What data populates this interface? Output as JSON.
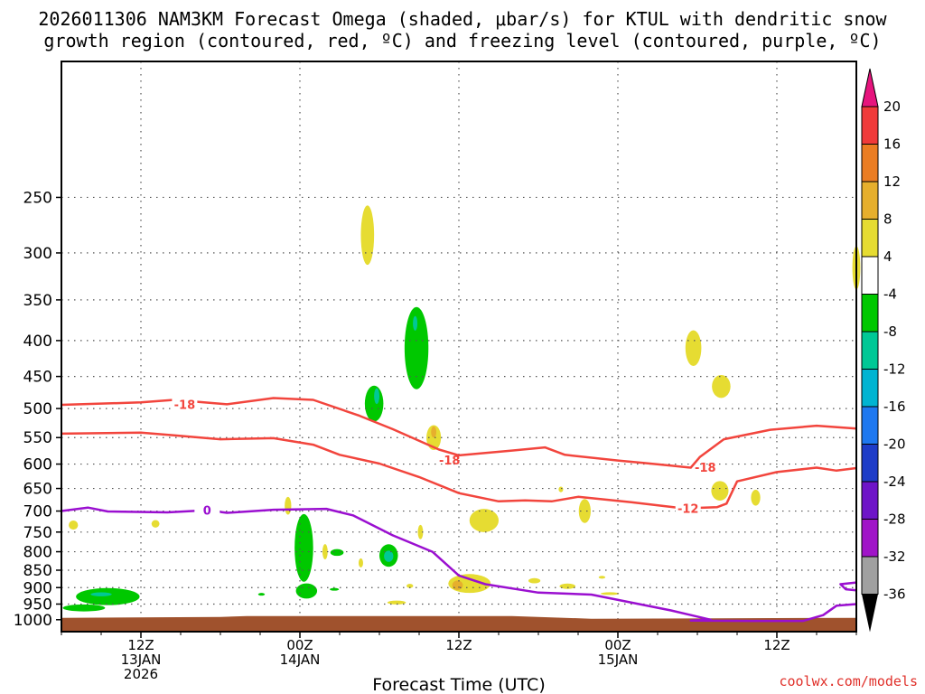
{
  "colors": {
    "dendritic": "#f2453d",
    "freezing": "#9a0fd0",
    "terrain": "#a0522d",
    "rising_weak": "#00c800",
    "rising_mod": "#00c896",
    "rising_strong": "#00b4d2",
    "sinking_weak": "#e6dc32",
    "sinking_mod": "#e6af2d"
  },
  "chart_data": {
    "type": "heatmap",
    "title_line1": "2026011306 NAM3KM Forecast Omega (shaded, μbar/s) for KTUL with dendritic snow",
    "title_line2": "growth region (contoured, red, ºC) and freezing level (contoured, purple, ºC)",
    "xlabel": "Forecast Time (UTC)",
    "x_unit": "forecast hour",
    "xlim": [
      0,
      60
    ],
    "ylim_hPa": [
      1040,
      160
    ],
    "y_ticks": [
      250,
      300,
      350,
      400,
      450,
      500,
      550,
      600,
      650,
      700,
      750,
      800,
      850,
      900,
      950,
      1000
    ],
    "x_ticks": [
      {
        "hour": 6,
        "line1": "12Z",
        "line2": "13JAN",
        "line3": "2026"
      },
      {
        "hour": 18,
        "line1": "00Z",
        "line2": "14JAN",
        "line3": ""
      },
      {
        "hour": 30,
        "line1": "12Z",
        "line2": "",
        "line3": ""
      },
      {
        "hour": 42,
        "line1": "00Z",
        "line2": "15JAN",
        "line3": ""
      },
      {
        "hour": 54,
        "line1": "12Z",
        "line2": "",
        "line3": ""
      }
    ],
    "colorbar": {
      "labels": [
        "20",
        "16",
        "12",
        "8",
        "4",
        "-4",
        "-8",
        "-12",
        "-16",
        "-20",
        "-24",
        "-28",
        "-32",
        "-36"
      ],
      "bins": [
        {
          "range": [
            16,
            20
          ],
          "color": "#f03a3a"
        },
        {
          "range": [
            12,
            16
          ],
          "color": "#eb7d23"
        },
        {
          "range": [
            8,
            12
          ],
          "color": "#e6af2d"
        },
        {
          "range": [
            4,
            8
          ],
          "color": "#e6dc32"
        },
        {
          "range": [
            -4,
            4
          ],
          "color": "#ffffff"
        },
        {
          "range": [
            -8,
            -4
          ],
          "color": "#00c800"
        },
        {
          "range": [
            -12,
            -8
          ],
          "color": "#00c896"
        },
        {
          "range": [
            -16,
            -12
          ],
          "color": "#00b4d2"
        },
        {
          "range": [
            -20,
            -16
          ],
          "color": "#1e78f0"
        },
        {
          "range": [
            -24,
            -20
          ],
          "color": "#1e3cc8"
        },
        {
          "range": [
            -28,
            -24
          ],
          "color": "#6e14c8"
        },
        {
          "range": [
            -32,
            -28
          ],
          "color": "#a014c8"
        },
        {
          "range": [
            -36,
            -32
          ],
          "color": "#a0a0a0"
        }
      ],
      "top_arrow_color": "#e6147d",
      "bottom_arrow_color": "#000000"
    },
    "contours": [
      {
        "name": "dendritic-upper-18",
        "label": "-18",
        "label_at": [
          9.3,
          493
        ],
        "points": [
          [
            0,
            494
          ],
          [
            6,
            490
          ],
          [
            8.5,
            486
          ],
          [
            12.5,
            493
          ],
          [
            16,
            483
          ],
          [
            19,
            486
          ],
          [
            22.5,
            512
          ],
          [
            25,
            535
          ],
          [
            28.5,
            572
          ],
          [
            30,
            583
          ],
          [
            34,
            574
          ],
          [
            36.5,
            568
          ],
          [
            38,
            582
          ],
          [
            42,
            593
          ],
          [
            44,
            598
          ],
          [
            46,
            603
          ],
          [
            47.5,
            607
          ],
          [
            48.2,
            586
          ],
          [
            50,
            553
          ],
          [
            53.5,
            536
          ],
          [
            57,
            529
          ],
          [
            60,
            534
          ]
        ]
      },
      {
        "name": "dendritic-lower-12",
        "label": "-12",
        "label_at": [
          47.3,
          694
        ],
        "points": [
          [
            0,
            543
          ],
          [
            6,
            541
          ],
          [
            8.5,
            546
          ],
          [
            12,
            553
          ],
          [
            16,
            551
          ],
          [
            19,
            563
          ],
          [
            21,
            582
          ],
          [
            24,
            599
          ],
          [
            27,
            626
          ],
          [
            30,
            660
          ],
          [
            33,
            678
          ],
          [
            35,
            676
          ],
          [
            37,
            678
          ],
          [
            39,
            668
          ],
          [
            43,
            680
          ],
          [
            47,
            694
          ],
          [
            49.5,
            691
          ],
          [
            50.2,
            683
          ],
          [
            51,
            635
          ],
          [
            54,
            616
          ],
          [
            57,
            607
          ],
          [
            58.5,
            613
          ],
          [
            60,
            608
          ]
        ]
      },
      {
        "name": "freezing-level-0",
        "label": "0",
        "label_at": [
          11,
          698
        ],
        "points": [
          [
            0,
            700
          ],
          [
            2,
            692
          ],
          [
            3.5,
            701
          ],
          [
            8,
            703
          ],
          [
            11,
            698
          ],
          [
            12.5,
            704
          ],
          [
            16,
            697
          ],
          [
            20,
            695
          ],
          [
            22,
            710
          ],
          [
            25,
            758
          ],
          [
            28,
            800
          ],
          [
            30,
            865
          ],
          [
            32,
            890
          ],
          [
            36,
            915
          ],
          [
            40,
            921
          ],
          [
            46,
            970
          ],
          [
            49,
            1000
          ],
          [
            47.5,
            1003
          ],
          [
            52,
            1004
          ],
          [
            56,
            1004
          ],
          [
            57.5,
            985
          ],
          [
            58.5,
            955
          ],
          [
            60,
            950
          ]
        ]
      },
      {
        "name": "freezing-level-0-right",
        "label": "",
        "label_at": null,
        "points": [
          [
            60,
            885
          ],
          [
            58.8,
            890
          ],
          [
            59.2,
            905
          ],
          [
            60,
            908
          ]
        ]
      }
    ],
    "shaded_regions": [
      {
        "bin": "-8",
        "hour": 3.5,
        "hPa": 927,
        "hw": 2.4,
        "hh": 52
      },
      {
        "bin": "-12",
        "hour": 3.0,
        "hPa": 920,
        "hw": 0.8,
        "hh": 12
      },
      {
        "bin": "-8",
        "hour": 1.7,
        "hPa": 962,
        "hw": 1.6,
        "hh": 22
      },
      {
        "bin": "4",
        "hour": 0.9,
        "hPa": 733,
        "hw": 0.35,
        "hh": 22
      },
      {
        "bin": "4",
        "hour": 7.1,
        "hPa": 730,
        "hw": 0.3,
        "hh": 18
      },
      {
        "bin": "4",
        "hour": 17.1,
        "hPa": 688,
        "hw": 0.25,
        "hh": 40
      },
      {
        "bin": "-8",
        "hour": 18.3,
        "hPa": 790,
        "hw": 0.7,
        "hh": 175
      },
      {
        "bin": "-8",
        "hour": 18.5,
        "hPa": 910,
        "hw": 0.8,
        "hh": 45
      },
      {
        "bin": "4",
        "hour": 19.9,
        "hPa": 800,
        "hw": 0.2,
        "hh": 40
      },
      {
        "bin": "-8",
        "hour": 20.8,
        "hPa": 802,
        "hw": 0.5,
        "hh": 18
      },
      {
        "bin": "-8",
        "hour": 15.1,
        "hPa": 920,
        "hw": 0.25,
        "hh": 8
      },
      {
        "bin": "-8",
        "hour": 20.6,
        "hPa": 905,
        "hw": 0.35,
        "hh": 8
      },
      {
        "bin": "4",
        "hour": 22.6,
        "hPa": 830,
        "hw": 0.15,
        "hh": 25
      },
      {
        "bin": "4",
        "hour": 23.1,
        "hPa": 283,
        "hw": 0.5,
        "hh": 55
      },
      {
        "bin": "-8",
        "hour": 23.6,
        "hPa": 492,
        "hw": 0.7,
        "hh": 58
      },
      {
        "bin": "-12",
        "hour": 23.8,
        "hPa": 480,
        "hw": 0.2,
        "hh": 25
      },
      {
        "bin": "-8",
        "hour": 26.8,
        "hPa": 410,
        "hw": 0.9,
        "hh": 110
      },
      {
        "bin": "-12",
        "hour": 26.7,
        "hPa": 378,
        "hw": 0.12,
        "hh": 18
      },
      {
        "bin": "-8",
        "hour": 24.7,
        "hPa": 810,
        "hw": 0.7,
        "hh": 60
      },
      {
        "bin": "-12",
        "hour": 24.7,
        "hPa": 812,
        "hw": 0.35,
        "hh": 30
      },
      {
        "bin": "4",
        "hour": 28.1,
        "hPa": 550,
        "hw": 0.55,
        "hh": 45
      },
      {
        "bin": "8",
        "hour": 28.1,
        "hPa": 540,
        "hw": 0.2,
        "hh": 20
      },
      {
        "bin": "4",
        "hour": 25.3,
        "hPa": 945,
        "hw": 0.7,
        "hh": 12
      },
      {
        "bin": "4",
        "hour": 26.3,
        "hPa": 895,
        "hw": 0.25,
        "hh": 12
      },
      {
        "bin": "4",
        "hour": 27.1,
        "hPa": 750,
        "hw": 0.2,
        "hh": 35
      },
      {
        "bin": "4",
        "hour": 31.9,
        "hPa": 722,
        "hw": 1.1,
        "hh": 55
      },
      {
        "bin": "4",
        "hour": 30.8,
        "hPa": 888,
        "hw": 1.6,
        "hh": 55
      },
      {
        "bin": "8",
        "hour": 29.9,
        "hPa": 893,
        "hw": 0.4,
        "hh": 28
      },
      {
        "bin": "4",
        "hour": 35.7,
        "hPa": 880,
        "hw": 0.45,
        "hh": 15
      },
      {
        "bin": "4",
        "hour": 38.2,
        "hPa": 896,
        "hw": 0.6,
        "hh": 16
      },
      {
        "bin": "4",
        "hour": 39.5,
        "hPa": 700,
        "hw": 0.45,
        "hh": 55
      },
      {
        "bin": "4",
        "hour": 37.7,
        "hPa": 652,
        "hw": 0.12,
        "hh": 12
      },
      {
        "bin": "4",
        "hour": 40.8,
        "hPa": 870,
        "hw": 0.25,
        "hh": 8
      },
      {
        "bin": "4",
        "hour": 41.4,
        "hPa": 918,
        "hw": 0.7,
        "hh": 5
      },
      {
        "bin": "4",
        "hour": 47.7,
        "hPa": 410,
        "hw": 0.6,
        "hh": 48
      },
      {
        "bin": "4",
        "hour": 49.8,
        "hPa": 465,
        "hw": 0.7,
        "hh": 35
      },
      {
        "bin": "4",
        "hour": 49.7,
        "hPa": 655,
        "hw": 0.65,
        "hh": 42
      },
      {
        "bin": "4",
        "hour": 52.4,
        "hPa": 670,
        "hw": 0.35,
        "hh": 35
      },
      {
        "bin": "4",
        "hour": 60.0,
        "hPa": 315,
        "hw": 0.3,
        "hh": 45
      }
    ],
    "terrain_top_hPa": 988
  },
  "credit": "coolwx.com/models"
}
